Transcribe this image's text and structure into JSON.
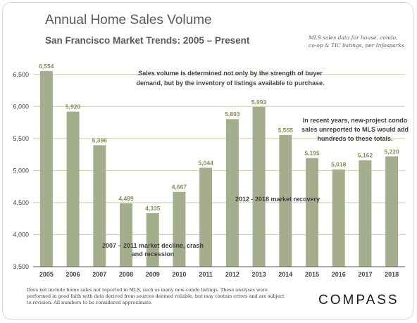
{
  "header": {
    "title": "Annual Home Sales Volume",
    "subtitle": "San Francisco Market Trends: 2005 – Present",
    "source_note": "MLS sales data for house, condo, co-op & TIC listings, per Infosparks"
  },
  "footer": {
    "disclaimer": "Does not include home sales not reported in MLS, such as many new-condo listings. These analyses were performed in good faith with data derived from sources deemed reliable, but may contain errors and are subject to revision. All numbers to be considered approximate.",
    "logo": "COMPASS"
  },
  "colors": {
    "bar": "#a5ae8c",
    "gridline": "#c9d19c",
    "data_label": "#8a8a55"
  },
  "chart_data": {
    "type": "bar",
    "categories": [
      "2005",
      "2006",
      "2007",
      "2008",
      "2009",
      "2010",
      "2011",
      "2012",
      "2013",
      "2014",
      "2015",
      "2016",
      "2017",
      "2018"
    ],
    "values": [
      6554,
      5920,
      5396,
      4489,
      4335,
      4667,
      5044,
      5803,
      5993,
      5555,
      5195,
      5018,
      5162,
      5220
    ],
    "value_labels": [
      "6,554",
      "5,920",
      "5,396",
      "4,489",
      "4,335",
      "4,667",
      "5,044",
      "5,803",
      "5,993",
      "5,555",
      "5,195",
      "5,018",
      "5,162",
      "5,220"
    ],
    "ylim": [
      3500,
      6750
    ],
    "yticks": [
      3500,
      4000,
      4500,
      5000,
      5500,
      6000,
      6500
    ],
    "ytick_labels": [
      "3,500",
      "4,000",
      "4,500",
      "5,000",
      "5,500",
      "6,000",
      "6,500"
    ],
    "grid": true,
    "annotations": [
      {
        "lines": [
          "Sales volume  is determined  not only by the strength of buyer",
          "demand,  but by the inventory  of listings  available  to purchase."
        ]
      },
      {
        "lines": [
          "In recent years, new-project condo",
          "sales unreported to MLS would add",
          "hundreds to these totals."
        ]
      },
      {
        "lines": [
          "2012 - 2018 market recovery"
        ]
      },
      {
        "lines": [
          "2007 – 2011 market decline, crash",
          "and recession"
        ]
      }
    ]
  }
}
